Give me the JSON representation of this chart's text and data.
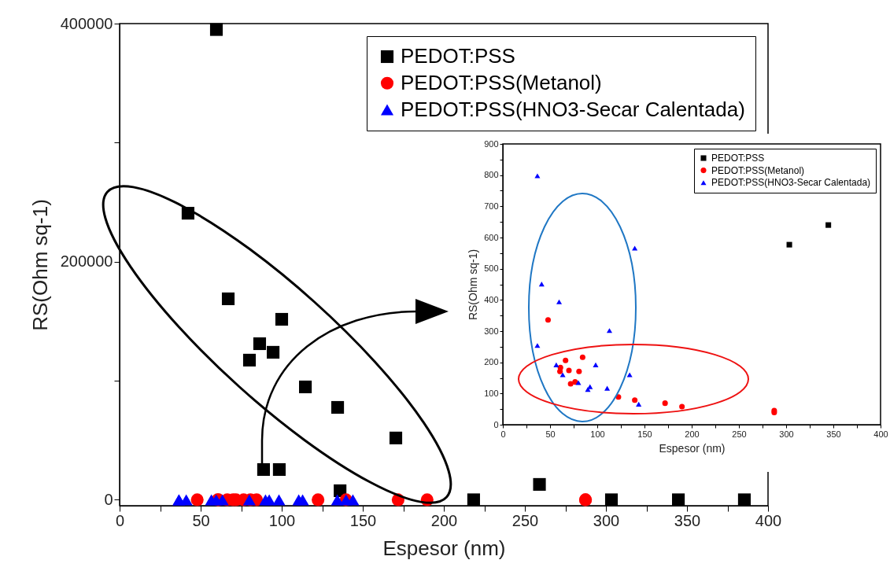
{
  "chart_data": [
    {
      "type": "scatter",
      "xlabel": "Espesor (nm)",
      "ylabel": "RS(Ohm sq-1)",
      "xlim": [
        0,
        400
      ],
      "ylim": [
        -5000,
        400000
      ],
      "xticks": [
        0,
        {
          "value": 25,
          "label": null
        },
        50,
        {
          "value": 75,
          "label": null
        },
        100,
        {
          "value": 125,
          "label": null
        },
        150,
        {
          "value": 175,
          "label": null
        },
        200,
        {
          "value": 225,
          "label": null
        },
        250,
        {
          "value": 275,
          "label": null
        },
        300,
        {
          "value": 325,
          "label": null
        },
        350,
        {
          "value": 375,
          "label": null
        },
        400
      ],
      "yticks": [
        0,
        {
          "value": 100000,
          "label": null
        },
        200000,
        {
          "value": 300000,
          "label": null
        },
        400000
      ],
      "grid": false,
      "legend": "top right",
      "series": [
        {
          "name": "PEDOT:PSS",
          "color": "#000000",
          "marker": "square",
          "x": [
            59.7,
            42.2,
            67,
            100,
            86.4,
            80.1,
            94.7,
            114.6,
            134.5,
            170.4,
            88.8,
            98.5,
            136,
            218.4,
            259,
            303.4,
            344.7,
            385.4
          ],
          "values": [
            395000,
            240700,
            168800,
            151600,
            131100,
            117300,
            123900,
            94800,
            77600,
            51900,
            25400,
            25400,
            7600,
            0,
            12900,
            0,
            0,
            0
          ]
        },
        {
          "name": "PEDOT:PSS(Metanol)",
          "color": "#ff0000",
          "marker": "circle",
          "x": [
            47.9,
            61,
            60.5,
            66.4,
            70,
            71.8,
            76.5,
            80.7,
            84.5,
            122.4,
            139.7,
            171.8,
            189.7,
            287.4,
            287.4
          ],
          "values": [
            0,
            0,
            0,
            0,
            0,
            0,
            0,
            0,
            0,
            0,
            0,
            0,
            0,
            0,
            0
          ]
        },
        {
          "name": "PEDOT:PSS(HNO3-Secar Calentada)",
          "color": "#0000ff",
          "marker": "triangle",
          "x": [
            36.6,
            41.1,
            59.6,
            36.6,
            56.6,
            63.4,
            80,
            90,
            92.3,
            98.3,
            110.5,
            112.9,
            134.3,
            139.7,
            143.9
          ],
          "values": [
            0,
            0,
            0,
            0,
            0,
            0,
            0,
            0,
            0,
            0,
            0,
            0,
            0,
            0,
            0
          ]
        }
      ]
    },
    {
      "type": "scatter",
      "xlabel": "Espesor (nm)",
      "ylabel": "RS(Ohm sq-1)",
      "xlim": [
        0,
        400
      ],
      "ylim": [
        0,
        900
      ],
      "xticks": [
        0,
        {
          "value": 25,
          "label": null
        },
        50,
        {
          "value": 75,
          "label": null
        },
        100,
        {
          "value": 125,
          "label": null
        },
        150,
        {
          "value": 175,
          "label": null
        },
        200,
        {
          "value": 225,
          "label": null
        },
        250,
        {
          "value": 275,
          "label": null
        },
        300,
        {
          "value": 325,
          "label": null
        },
        350,
        {
          "value": 375,
          "label": null
        },
        400
      ],
      "yticks": [
        0,
        {
          "value": 50,
          "label": null
        },
        100,
        {
          "value": 150,
          "label": null
        },
        200,
        {
          "value": 250,
          "label": null
        },
        300,
        {
          "value": 350,
          "label": null
        },
        400,
        {
          "value": 450,
          "label": null
        },
        500,
        {
          "value": 550,
          "label": null
        },
        600,
        {
          "value": 650,
          "label": null
        },
        700,
        {
          "value": 750,
          "label": null
        },
        800,
        {
          "value": 850,
          "label": null
        },
        900
      ],
      "grid": false,
      "legend": "top right",
      "series": [
        {
          "name": "PEDOT:PSS",
          "color": "#000000",
          "marker": "square",
          "x": [
            303.4,
            344.7
          ],
          "values": [
            577,
            640
          ]
        },
        {
          "name": "PEDOT:PSS(Metanol)",
          "color": "#ff0000",
          "marker": "circle",
          "x": [
            47.9,
            61,
            60.5,
            66.4,
            70,
            71.8,
            76.5,
            80.7,
            84.5,
            122.4,
            139.7,
            171.8,
            189.7,
            287.4,
            287.4
          ],
          "values": [
            336,
            183,
            171,
            206,
            174,
            131,
            137,
            171,
            216,
            89,
            79,
            69,
            58,
            45,
            39
          ]
        },
        {
          "name": "PEDOT:PSS(HNO3-Secar Calentada)",
          "color": "#0000ff",
          "marker": "triangle",
          "x": [
            36.6,
            41.1,
            59.6,
            36.6,
            56.6,
            63.4,
            80,
            90,
            92.3,
            98.3,
            110.5,
            112.9,
            134.3,
            139.7,
            143.9
          ],
          "values": [
            798,
            451,
            394,
            254,
            192,
            160,
            135,
            113,
            122,
            192,
            117,
            302,
            160,
            566,
            66
          ]
        }
      ]
    }
  ]
}
